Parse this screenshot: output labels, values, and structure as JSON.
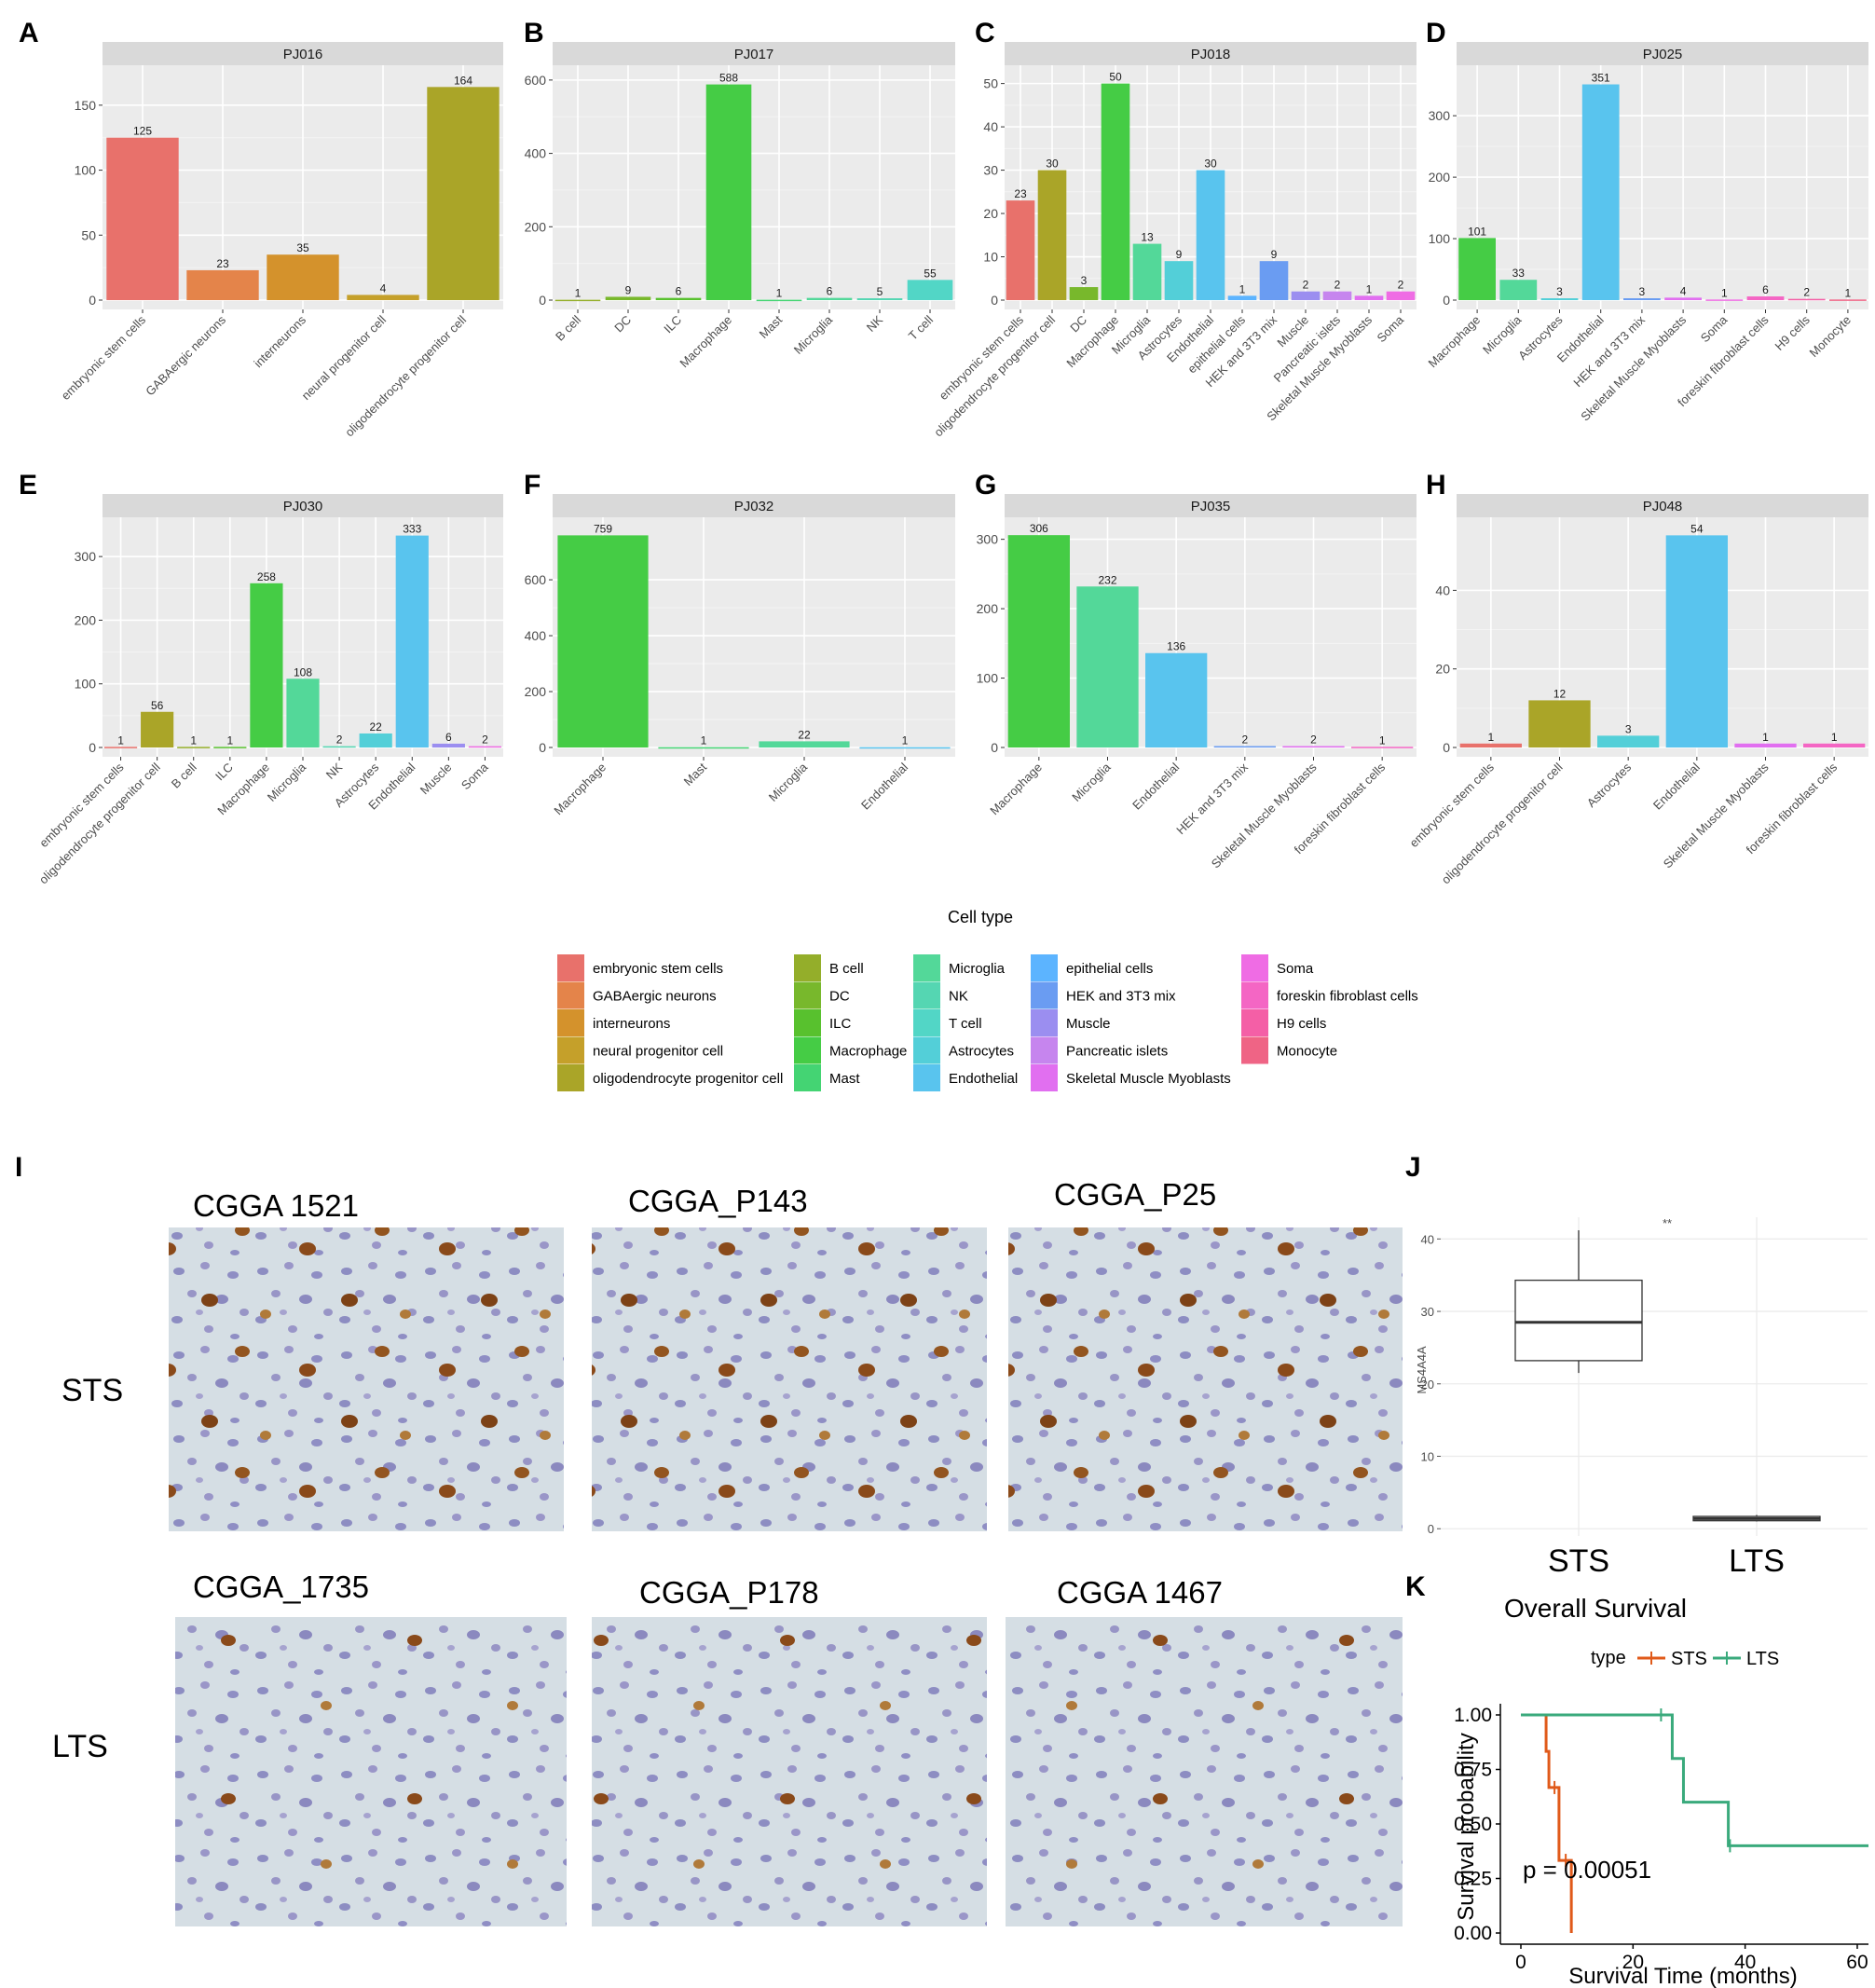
{
  "colors": {
    "panel_bg": "#ebebeb",
    "strip_bg": "#d9d9d9",
    "grid": "#ffffff",
    "sts": "#e05a1a",
    "lts": "#3aaa7c",
    "celltypes": {
      "embryonic stem cells": "#e8716b",
      "GABAergic neurons": "#e4844a",
      "interneurons": "#d4922c",
      "neural progenitor cell": "#c5a02a",
      "oligodendrocyte progenitor cell": "#aaa528",
      "B cell": "#94ae2a",
      "DC": "#78b82c",
      "ILC": "#58c12e",
      "Macrophage": "#45cc45",
      "Mast": "#44d473",
      "Microglia": "#53d899",
      "NK": "#55d6b2",
      "T cell": "#52d6c6",
      "Astrocytes": "#53cfd8",
      "Endothelial": "#59c4ee",
      "epithelial cells": "#5cb4ff",
      "HEK and 3T3 mix": "#6a9cf2",
      "Muscle": "#9b8ef0",
      "Pancreatic islets": "#c685ee",
      "Skeletal Muscle Myoblasts": "#e16ff0",
      "Soma": "#ef6ce4",
      "foreskin fibroblast cells": "#f466c4",
      "H9 cells": "#f45fa6",
      "Monocyte": "#ef6485"
    }
  },
  "chart_data": [
    {
      "panel": "A",
      "type": "bar",
      "title": "PJ016",
      "ylim": [
        0,
        175
      ],
      "yticks": [
        0,
        50,
        100,
        150
      ],
      "categories": [
        "embryonic stem cells",
        "GABAergic neurons",
        "interneurons",
        "neural progenitor cell",
        "oligodendrocyte progenitor cell"
      ],
      "values": [
        125,
        23,
        35,
        4,
        164
      ]
    },
    {
      "panel": "B",
      "type": "bar",
      "title": "PJ017",
      "ylim": [
        0,
        620
      ],
      "yticks": [
        0,
        200,
        400,
        600
      ],
      "categories": [
        "B cell",
        "DC",
        "ILC",
        "Macrophage",
        "Mast",
        "Microglia",
        "NK",
        "T cell"
      ],
      "values": [
        1,
        9,
        6,
        588,
        1,
        6,
        5,
        55
      ]
    },
    {
      "panel": "C",
      "type": "bar",
      "title": "PJ018",
      "ylim": [
        0,
        52.5
      ],
      "yticks": [
        0,
        10,
        20,
        30,
        40,
        50
      ],
      "categories": [
        "embryonic stem cells",
        "oligodendrocyte progenitor cell",
        "DC",
        "Macrophage",
        "Microglia",
        "Astrocytes",
        "Endothelial",
        "epithelial cells",
        "HEK and 3T3 mix",
        "Muscle",
        "Pancreatic islets",
        "Skeletal Muscle Myoblasts",
        "Soma"
      ],
      "values": [
        23,
        30,
        3,
        50,
        13,
        9,
        30,
        1,
        9,
        2,
        2,
        1,
        2
      ]
    },
    {
      "panel": "D",
      "type": "bar",
      "title": "PJ025",
      "ylim": [
        0,
        370
      ],
      "yticks": [
        0,
        100,
        200,
        300
      ],
      "categories": [
        "Macrophage",
        "Microglia",
        "Astrocytes",
        "Endothelial",
        "HEK and 3T3 mix",
        "Skeletal Muscle Myoblasts",
        "Soma",
        "foreskin fibroblast cells",
        "H9 cells",
        "Monocyte"
      ],
      "values": [
        101,
        33,
        3,
        351,
        3,
        4,
        1,
        6,
        2,
        1
      ]
    },
    {
      "panel": "E",
      "type": "bar",
      "title": "PJ030",
      "ylim": [
        0,
        350
      ],
      "yticks": [
        0,
        100,
        200,
        300
      ],
      "categories": [
        "embryonic stem cells",
        "oligodendrocyte progenitor cell",
        "B cell",
        "ILC",
        "Macrophage",
        "Microglia",
        "NK",
        "Astrocytes",
        "Endothelial",
        "Muscle",
        "Soma"
      ],
      "values": [
        1,
        56,
        1,
        1,
        258,
        108,
        2,
        22,
        333,
        6,
        2
      ]
    },
    {
      "panel": "F",
      "type": "bar",
      "title": "PJ032",
      "ylim": [
        0,
        797
      ],
      "yticks": [
        0,
        200,
        400,
        600
      ],
      "categories": [
        "Macrophage",
        "Mast",
        "Microglia",
        "Endothelial"
      ],
      "values": [
        759,
        1,
        22,
        1
      ]
    },
    {
      "panel": "G",
      "type": "bar",
      "title": "PJ035",
      "ylim": [
        0,
        321
      ],
      "yticks": [
        0,
        100,
        200,
        300
      ],
      "categories": [
        "Macrophage",
        "Microglia",
        "Endothelial",
        "HEK and 3T3 mix",
        "Skeletal Muscle Myoblasts",
        "foreskin fibroblast cells"
      ],
      "values": [
        306,
        232,
        136,
        2,
        2,
        1
      ]
    },
    {
      "panel": "H",
      "type": "bar",
      "title": "PJ048",
      "ylim": [
        0,
        56.7
      ],
      "yticks": [
        0,
        20,
        40
      ],
      "categories": [
        "embryonic stem cells",
        "oligodendrocyte progenitor cell",
        "Astrocytes",
        "Endothelial",
        "Skeletal Muscle Myoblasts",
        "foreskin fibroblast cells"
      ],
      "values": [
        1,
        12,
        3,
        54,
        1,
        1
      ]
    },
    {
      "panel": "J",
      "type": "box",
      "ylabel": "MS4A4A",
      "yticks": [
        0,
        10,
        20,
        30,
        40
      ],
      "ylim": [
        -1,
        43
      ],
      "categories": [
        "STS",
        "LTS"
      ],
      "boxes": [
        {
          "name": "STS",
          "min": 21.5,
          "q1": 23.2,
          "median": 28.5,
          "q3": 34.3,
          "max": 41.2
        },
        {
          "name": "LTS",
          "min": 1.0,
          "q1": 1.1,
          "median": 1.4,
          "q3": 1.7,
          "max": 1.9
        }
      ],
      "significance": "**"
    },
    {
      "panel": "K",
      "type": "line",
      "title": "Overall Survival",
      "xlabel": "Survival Time (months)",
      "ylabel": "Survival probability",
      "xlim": [
        0,
        62
      ],
      "ylim": [
        0,
        1
      ],
      "xticks": [
        0,
        20,
        40,
        60
      ],
      "yticks": [
        "0.00",
        "0.25",
        "0.50",
        "0.75",
        "1.00"
      ],
      "legend_title": "type",
      "series": [
        {
          "name": "STS",
          "steps": [
            [
              0,
              1.0
            ],
            [
              4.5,
              0.833
            ],
            [
              5.0,
              0.667
            ],
            [
              6.8,
              0.333
            ],
            [
              9.0,
              0.0
            ]
          ],
          "censors": [
            [
              6.0,
              0.667
            ],
            [
              8.0,
              0.333
            ]
          ]
        },
        {
          "name": "LTS",
          "steps": [
            [
              0,
              1.0
            ],
            [
              27,
              0.8
            ],
            [
              29,
              0.6
            ],
            [
              37,
              0.4
            ],
            [
              62,
              0.4
            ]
          ],
          "censors": [
            [
              25,
              1.0
            ],
            [
              37.3,
              0.4
            ]
          ]
        }
      ],
      "p_value": "p = 0.00051"
    }
  ],
  "legend": {
    "title": "Cell type",
    "columns": [
      [
        "embryonic stem cells",
        "GABAergic neurons",
        "interneurons",
        "neural progenitor cell",
        "oligodendrocyte progenitor cell"
      ],
      [
        "B cell",
        "DC",
        "ILC",
        "Macrophage",
        "Mast"
      ],
      [
        "Microglia",
        "NK",
        "T cell",
        "Astrocytes",
        "Endothelial"
      ],
      [
        "epithelial cells",
        "HEK and 3T3 mix",
        "Muscle",
        "Pancreatic islets",
        "Skeletal Muscle Myoblasts"
      ],
      [
        "Soma",
        "foreskin fibroblast cells",
        "H9 cells",
        "Monocyte"
      ]
    ]
  },
  "ihc": {
    "panel": "I",
    "row_labels": [
      "STS",
      "LTS"
    ],
    "titles": [
      [
        "CGGA  1521",
        "CGGA_P143",
        "CGGA_P25"
      ],
      [
        "CGGA_1735",
        "CGGA_P178",
        "CGGA  1467"
      ]
    ]
  },
  "panel_letters": [
    "A",
    "B",
    "C",
    "D",
    "E",
    "F",
    "G",
    "H",
    "I",
    "J",
    "K"
  ]
}
